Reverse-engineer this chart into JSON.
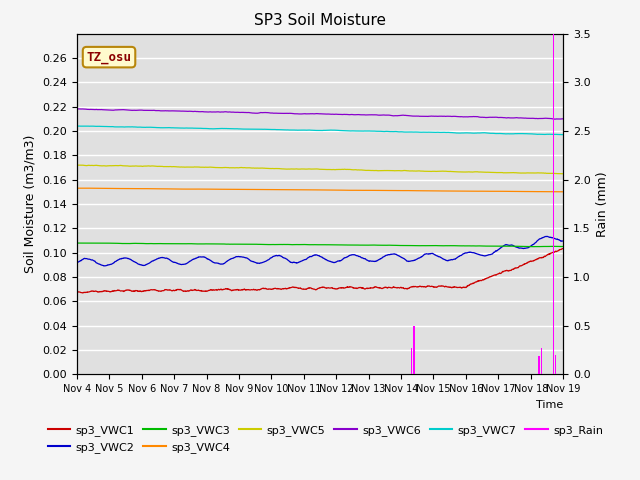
{
  "title": "SP3 Soil Moisture",
  "xlabel": "Time",
  "ylabel_left": "Soil Moisture (m3/m3)",
  "ylabel_right": "Rain (mm)",
  "ylim_left": [
    0.0,
    0.28
  ],
  "ylim_right": [
    0.0,
    3.5
  ],
  "x_tick_labels": [
    "Nov 4",
    "Nov 5",
    "Nov 6",
    "Nov 7",
    "Nov 8",
    "Nov 9",
    "Nov 10",
    "Nov 11",
    "Nov 12",
    "Nov 13",
    "Nov 14",
    "Nov 15",
    "Nov 16",
    "Nov 17",
    "Nov 18",
    "Nov 19"
  ],
  "background_color": "#e0e0e0",
  "grid_color": "#ffffff",
  "fig_background": "#f5f5f5",
  "annotation": {
    "text": "TZ_osu",
    "text_color": "#8b0000",
    "box_facecolor": "#fffacd",
    "box_edgecolor": "#b8860b"
  },
  "colors": {
    "sp3_VWC1": "#cc0000",
    "sp3_VWC2": "#0000cc",
    "sp3_VWC3": "#00bb00",
    "sp3_VWC4": "#ff8800",
    "sp3_VWC5": "#cccc00",
    "sp3_VWC6": "#8800cc",
    "sp3_VWC7": "#00cccc",
    "sp3_Rain": "#ff00ff"
  },
  "legend_order": [
    "sp3_VWC1",
    "sp3_VWC2",
    "sp3_VWC3",
    "sp3_VWC4",
    "sp3_VWC5",
    "sp3_VWC6",
    "sp3_VWC7",
    "sp3_Rain"
  ]
}
